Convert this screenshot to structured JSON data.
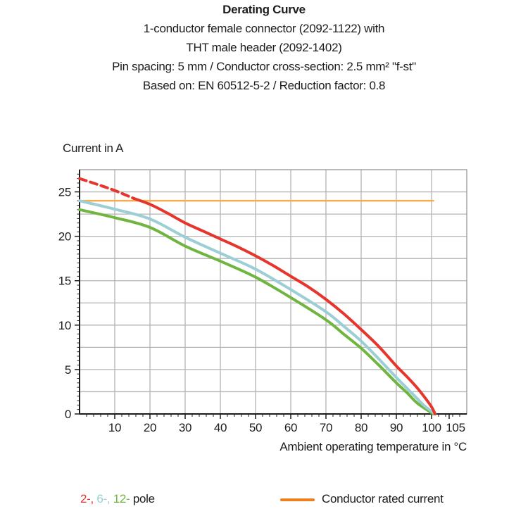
{
  "header": {
    "title": "Derating Curve",
    "subtitle_lines": [
      "1-conductor female connector (2092-1122) with",
      "THT male header (2092-1402)",
      "Pin spacing: 5 mm / Conductor cross-section: 2.5 mm² \"f-st\"",
      "Based on: EN 60512-5-2 / Reduction factor: 0.8"
    ]
  },
  "chart": {
    "y_axis_title": "Current in A",
    "x_axis_title": "Ambient operating temperature in °C",
    "x_tick_labels": [
      10,
      20,
      30,
      40,
      50,
      60,
      70,
      80,
      90,
      100,
      105
    ],
    "y_tick_labels": [
      0,
      5,
      10,
      15,
      20,
      25
    ]
  },
  "chart_data": {
    "type": "line",
    "title": "Derating Curve",
    "xlabel": "Ambient operating temperature in °C",
    "ylabel": "Current in A",
    "xlim": [
      0,
      110
    ],
    "ylim": [
      0,
      27.5
    ],
    "x_grid_step": 10,
    "y_grid_step": 2.5,
    "rated_current_A": 24,
    "curves_reach_zero_at_C": 101,
    "series": [
      {
        "name": "2-pole",
        "color": "#e6352c",
        "width": 4,
        "segments": [
          {
            "dash": "10 6",
            "points": [
              [
                0,
                26.5
              ],
              [
                5,
                25.85
              ],
              [
                10,
                25.15
              ],
              [
                15.5,
                24.25
              ]
            ]
          },
          {
            "points": [
              [
                15.5,
                24.25
              ],
              [
                20,
                23.6
              ],
              [
                25,
                22.6
              ],
              [
                30,
                21.5
              ],
              [
                35,
                20.6
              ],
              [
                40,
                19.7
              ],
              [
                45,
                18.8
              ],
              [
                50,
                17.8
              ],
              [
                55,
                16.7
              ],
              [
                60,
                15.5
              ],
              [
                65,
                14.3
              ],
              [
                70,
                12.9
              ],
              [
                75,
                11.3
              ],
              [
                80,
                9.5
              ],
              [
                85,
                7.6
              ],
              [
                90,
                5.4
              ],
              [
                93,
                4.2
              ],
              [
                96,
                2.9
              ],
              [
                98,
                1.9
              ],
              [
                100,
                0.8
              ],
              [
                101,
                0
              ]
            ]
          }
        ]
      },
      {
        "name": "6-pole",
        "color": "#9bced5",
        "width": 4,
        "segments": [
          {
            "points": [
              [
                0,
                24
              ],
              [
                10,
                23.05
              ],
              [
                20,
                21.95
              ],
              [
                30,
                19.9
              ],
              [
                40,
                18.1
              ],
              [
                50,
                16.3
              ],
              [
                60,
                14.0
              ],
              [
                70,
                11.5
              ],
              [
                75,
                9.9
              ],
              [
                80,
                8.2
              ],
              [
                85,
                6.2
              ],
              [
                90,
                4.1
              ],
              [
                93,
                2.9
              ],
              [
                96,
                1.7
              ],
              [
                98,
                0.9
              ],
              [
                101,
                0
              ]
            ]
          }
        ]
      },
      {
        "name": "12-pole",
        "color": "#6fb540",
        "width": 4,
        "segments": [
          {
            "points": [
              [
                0,
                23
              ],
              [
                10,
                22.1
              ],
              [
                20,
                21.0
              ],
              [
                30,
                18.9
              ],
              [
                40,
                17.2
              ],
              [
                50,
                15.4
              ],
              [
                60,
                13.1
              ],
              [
                70,
                10.6
              ],
              [
                75,
                9.0
              ],
              [
                80,
                7.4
              ],
              [
                85,
                5.5
              ],
              [
                90,
                3.5
              ],
              [
                93,
                2.4
              ],
              [
                96,
                1.2
              ],
              [
                100.5,
                0
              ]
            ]
          }
        ]
      },
      {
        "name": "Conductor rated current",
        "color": "#f6ad51",
        "width": 2.5,
        "segments": [
          {
            "points": [
              [
                0,
                24
              ],
              [
                100.5,
                24
              ]
            ]
          }
        ]
      }
    ]
  },
  "legend": {
    "pole": [
      {
        "text": "2-,",
        "color": "#e6352c"
      },
      {
        "text": " 6-,",
        "color": "#9bced5"
      },
      {
        "text": " 12-",
        "color": "#6fb540"
      },
      {
        "text": " pole",
        "color": "#1d1d1b"
      }
    ],
    "rated": {
      "label": "Conductor rated current",
      "swatch_color": "#ee7f1f"
    }
  },
  "colors": {
    "text": "#1d1d1b",
    "grid": "#b3b3b3",
    "border": "#9c9c9c",
    "axis": "#1d1d1b",
    "red_2pole": "#e6352c",
    "blue_6pole": "#9bced5",
    "green_12pole": "#6fb540",
    "orange_line": "#f6ad51",
    "orange_swatch": "#ee7f1f"
  }
}
